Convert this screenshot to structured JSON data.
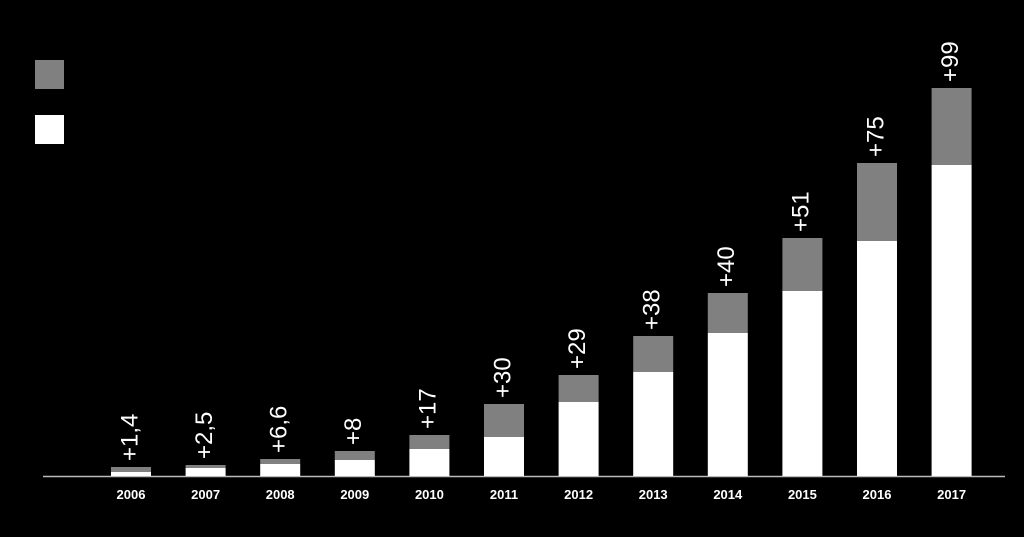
{
  "chart_data": {
    "type": "stacked-bar",
    "categories": [
      "2006",
      "2007",
      "2008",
      "2009",
      "2010",
      "2011",
      "2012",
      "2013",
      "2014",
      "2015",
      "2016",
      "2017"
    ],
    "series": [
      {
        "color": "#ffffff",
        "values": [
          4,
          8,
          12,
          16,
          27,
          39,
          74,
          104,
          143,
          185,
          235,
          311
        ]
      },
      {
        "color": "#808080",
        "values": [
          5,
          3,
          5,
          9,
          14,
          33,
          27,
          36,
          40,
          53,
          78,
          77
        ]
      }
    ],
    "annotations": {
      "values": [
        1.4,
        2.5,
        6.6,
        8,
        17,
        30,
        29,
        38,
        40,
        51,
        75,
        99
      ],
      "value_labels": [
        "+1,4",
        "+2,5",
        "+6,6",
        "+8",
        "+17",
        "+30",
        "+29",
        "+38",
        "+40",
        "+51",
        "+75",
        "+99"
      ]
    },
    "ylim": [
      0,
      400
    ]
  }
}
